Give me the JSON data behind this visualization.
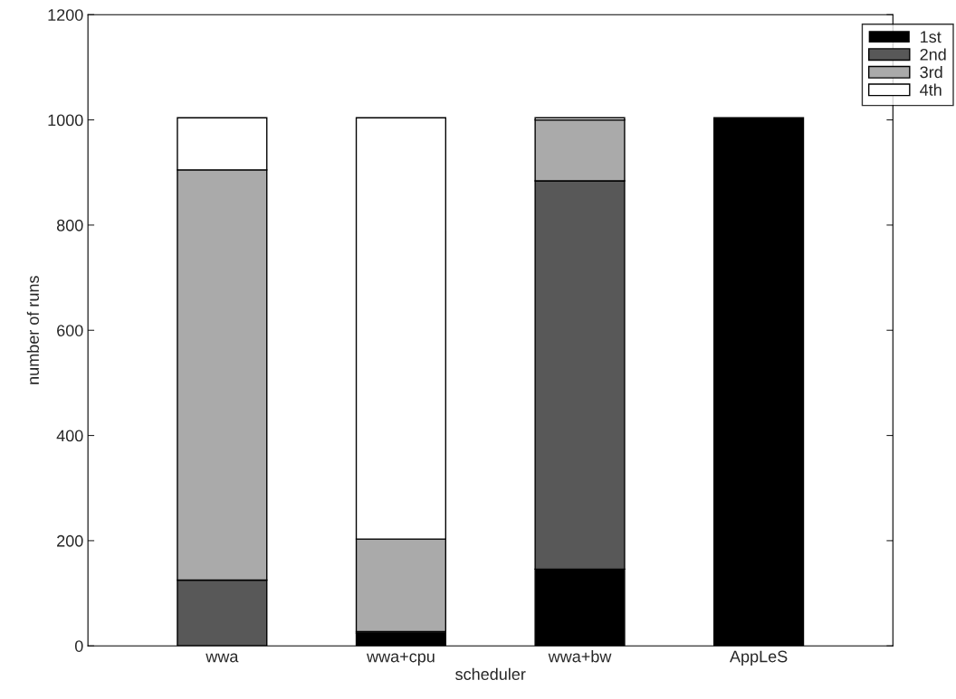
{
  "chart_data": {
    "type": "bar",
    "stacked": true,
    "xlabel": "scheduler",
    "ylabel": "number of runs",
    "categories": [
      "wwa",
      "wwa+cpu",
      "wwa+bw",
      "AppLeS"
    ],
    "series": [
      {
        "name": "1st",
        "color": "#000000",
        "values": [
          0,
          24,
          146,
          1004
        ]
      },
      {
        "name": "2nd",
        "color": "#585858",
        "values": [
          125,
          3,
          738,
          0
        ]
      },
      {
        "name": "3rd",
        "color": "#aaaaaa",
        "values": [
          780,
          176,
          116,
          0
        ]
      },
      {
        "name": "4th",
        "color": "#ffffff",
        "values": [
          99,
          801,
          4,
          0
        ]
      }
    ],
    "ylim": [
      0,
      1200
    ],
    "yticks": [
      0,
      200,
      400,
      600,
      800,
      1000,
      1200
    ],
    "grid": false,
    "legend": "top right"
  }
}
